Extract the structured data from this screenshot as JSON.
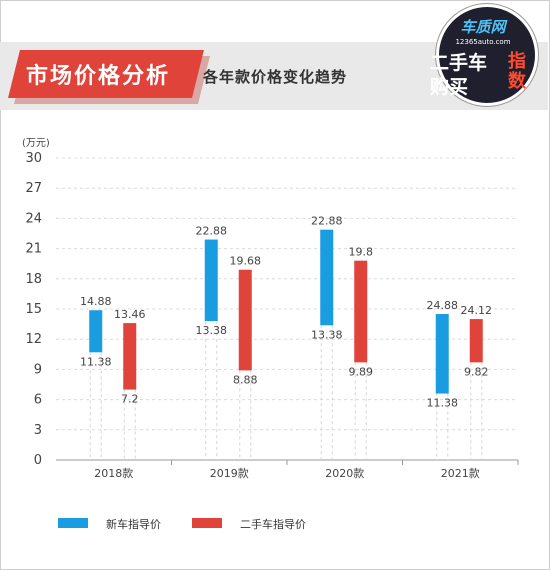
{
  "header": {
    "title": "市场价格分析",
    "subtitle": "各年款价格变化趋势"
  },
  "logo": {
    "site": "车质网",
    "url": "12365auto.com",
    "line1": "二手车",
    "line2": "购买",
    "accent": "指数"
  },
  "colors": {
    "new_car": "#1a9de0",
    "used_car": "#e0433a",
    "axis_text": "#555555",
    "grid": "#dcdcdc"
  },
  "chart_data": {
    "type": "bar",
    "ylabel": "(万元)",
    "ylim": [
      0,
      30
    ],
    "yticks": [
      0,
      3,
      6,
      9,
      12,
      15,
      18,
      21,
      24,
      27,
      30
    ],
    "grid": true,
    "legend_position": "bottom-left",
    "categories": [
      "2018款",
      "2019款",
      "2020款",
      "2021款"
    ],
    "series": [
      {
        "name": "新车指导价",
        "color": "#1a9de0",
        "low": [
          11.38,
          13.38,
          13.38,
          11.38
        ],
        "high": [
          14.88,
          22.88,
          22.88,
          24.88
        ],
        "bar_bottom": [
          10.7,
          13.8,
          13.38,
          6.6
        ],
        "bar_top": [
          14.88,
          21.9,
          22.88,
          14.5
        ]
      },
      {
        "name": "二手车指导价",
        "color": "#e0433a",
        "low": [
          7.2,
          8.88,
          9.89,
          9.82
        ],
        "high": [
          13.46,
          19.68,
          19.8,
          24.12
        ],
        "bar_bottom": [
          7.0,
          8.9,
          9.7,
          9.7
        ],
        "bar_top": [
          13.6,
          18.9,
          19.8,
          14.0
        ]
      }
    ]
  }
}
